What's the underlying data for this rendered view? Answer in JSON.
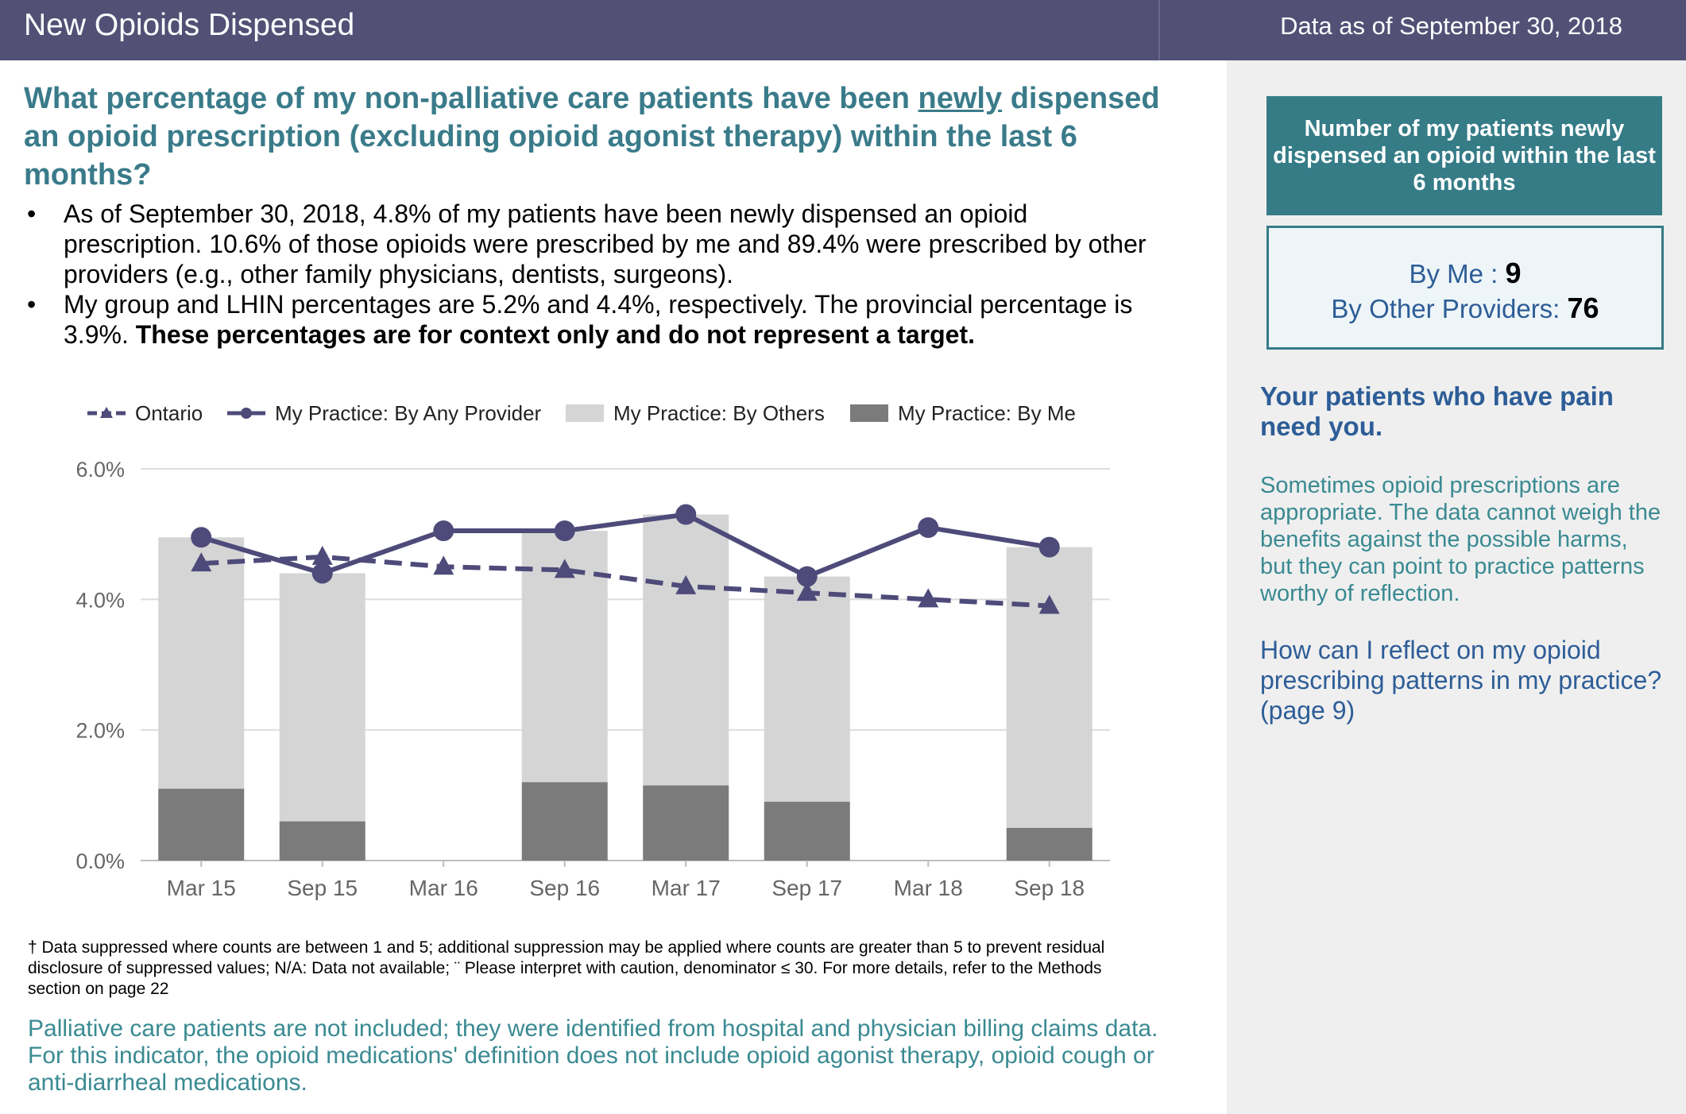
{
  "header": {
    "title": "New Opioids Dispensed",
    "asof": "Data as of  September 30, 2018"
  },
  "question": {
    "part1": "What percentage of my non-palliative care patients have been ",
    "underlined": "newly",
    "part2": " dispensed an opioid prescription (excluding opioid agonist therapy) within the last 6 months?"
  },
  "bullets": {
    "dot": "•",
    "b1": "As of September 30, 2018, 4.8% of my patients have been newly dispensed an opioid prescription. 10.6% of those opioids were prescribed by me and 89.4% were prescribed by other providers (e.g., other family physicians, dentists, surgeons).",
    "b2_normal": "My group and LHIN percentages are 5.2% and 4.4%, respectively. The provincial percentage is 3.9%. ",
    "b2_bold": "These percentages are for context only and do not represent a target."
  },
  "chart_data": {
    "type": "bar",
    "categories": [
      "Mar 15",
      "Sep 15",
      "Mar 16",
      "Sep 16",
      "Mar 17",
      "Sep 17",
      "Mar 18",
      "Sep 18"
    ],
    "series": [
      {
        "name": "My Practice: By Me",
        "kind": "stacked-bar",
        "color": "#7b7b7b",
        "values": [
          1.1,
          0.6,
          null,
          1.2,
          1.15,
          0.9,
          null,
          0.5
        ]
      },
      {
        "name": "My Practice: By Others",
        "kind": "stacked-bar",
        "color": "#d5d5d5",
        "values": [
          3.85,
          3.8,
          null,
          3.85,
          4.15,
          3.45,
          null,
          4.3
        ]
      },
      {
        "name": "My Practice: By Any Provider",
        "kind": "line",
        "marker": "circle",
        "color": "#4e4b7a",
        "values": [
          4.95,
          4.4,
          5.05,
          5.05,
          5.3,
          4.35,
          5.1,
          4.8
        ]
      },
      {
        "name": "Ontario",
        "kind": "dashed-line",
        "marker": "triangle",
        "color": "#4e4b7a",
        "values": [
          4.55,
          4.65,
          4.5,
          4.45,
          4.2,
          4.1,
          4.0,
          3.9
        ]
      }
    ],
    "legend_order": [
      "Ontario",
      "My Practice: By Any Provider",
      "My Practice: By Others",
      "My Practice: By Me"
    ],
    "y_ticks": [
      "0.0%",
      "2.0%",
      "4.0%",
      "6.0%"
    ],
    "y_tick_values": [
      0,
      2,
      4,
      6
    ],
    "ylim": [
      0,
      6
    ],
    "grid": true,
    "legend_position": "top",
    "title": "",
    "xlabel": "",
    "ylabel": ""
  },
  "footnote": "† Data suppressed where counts are between 1 and 5; additional suppression may be applied where counts are greater than 5 to prevent residual disclosure of suppressed values; N/A: Data not available; ¨ Please interpret with caution, denominator ≤ 30. For more details, refer to the Methods section on page 22",
  "note": "Palliative care patients are not included; they were identified from hospital and physician billing claims data. For this indicator, the opioid medications' definition does not include opioid agonist therapy, opioid cough or anti-diarrheal medications.",
  "sidebar": {
    "count_heading": "Number of my patients newly dispensed an opioid within the last 6 months",
    "by_me_label": "By Me : ",
    "by_me_value": "9",
    "by_others_label": "By Other Providers: ",
    "by_others_value": "76",
    "pain_heading": "Your patients who have pain need you.",
    "sometimes": "Sometimes opioid prescriptions are appropriate. The data cannot weigh the benefits against the possible harms, but they can point to practice patterns worthy of reflection.",
    "reflect": "How can I reflect on my opioid prescribing patterns in my practice? (page 9)"
  }
}
